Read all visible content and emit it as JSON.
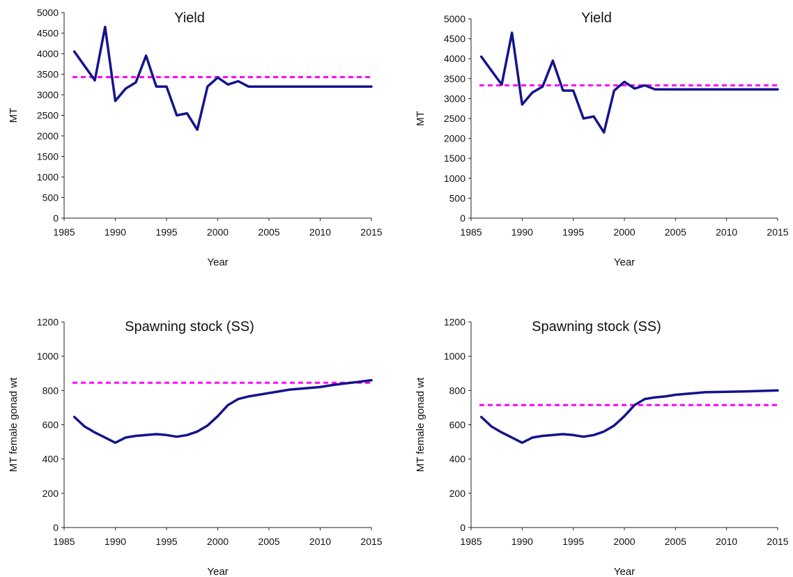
{
  "chart_data": [
    {
      "type": "line",
      "title": "Yield",
      "xlabel": "Year",
      "ylabel": "MT",
      "xlim": [
        1985,
        2015
      ],
      "ylim": [
        0,
        5000
      ],
      "xticks": [
        1985,
        1990,
        1995,
        2000,
        2005,
        2010,
        2015
      ],
      "yticks": [
        0,
        500,
        1000,
        1500,
        2000,
        2500,
        3000,
        3500,
        4000,
        4500,
        5000
      ],
      "xtick_labels": [
        "1985",
        "1990",
        "1995",
        "2000",
        "2005",
        "2010",
        "2015"
      ],
      "ytick_labels": [
        "0",
        "500",
        "1000",
        "1500",
        "2000",
        "2500",
        "3000",
        "3500",
        "4000",
        "4500",
        "5000"
      ],
      "grid": false,
      "series": [
        {
          "color": "#14148c",
          "style": "solid",
          "x": [
            1986,
            1987,
            1988,
            1989,
            1990,
            1991,
            1992,
            1993,
            1994,
            1995,
            1996,
            1997,
            1998,
            1999,
            2000,
            2001,
            2002,
            2003,
            2005,
            2010,
            2015
          ],
          "y": [
            4050,
            3700,
            3350,
            4650,
            2850,
            3150,
            3300,
            3950,
            3200,
            3200,
            2500,
            2550,
            2150,
            3200,
            3420,
            3250,
            3330,
            3200,
            3200,
            3200,
            3200
          ]
        }
      ],
      "reference_line": {
        "value": 3430,
        "color": "#ff00ff",
        "style": "dashed"
      }
    },
    {
      "type": "line",
      "title": "Yield",
      "xlabel": "Year",
      "ylabel": "MT",
      "xlim": [
        1985,
        2015
      ],
      "ylim": [
        0,
        5000
      ],
      "xticks": [
        1985,
        1990,
        1995,
        2000,
        2005,
        2010,
        2015
      ],
      "yticks": [
        0,
        500,
        1000,
        1500,
        2000,
        2500,
        3000,
        3500,
        4000,
        4500,
        5000
      ],
      "xtick_labels": [
        "1985",
        "1990",
        "1995",
        "2000",
        "2005",
        "2010",
        "2015"
      ],
      "ytick_labels": [
        "0",
        "500",
        "1000",
        "1500",
        "2000",
        "2500",
        "3000",
        "3500",
        "4000",
        "4500",
        "5000"
      ],
      "grid": false,
      "series": [
        {
          "color": "#14148c",
          "style": "solid",
          "x": [
            1986,
            1987,
            1988,
            1989,
            1990,
            1991,
            1992,
            1993,
            1994,
            1995,
            1996,
            1997,
            1998,
            1999,
            2000,
            2001,
            2002,
            2003,
            2005,
            2010,
            2015
          ],
          "y": [
            4050,
            3700,
            3350,
            4650,
            2850,
            3150,
            3300,
            3950,
            3200,
            3200,
            2500,
            2550,
            2150,
            3200,
            3420,
            3250,
            3330,
            3230,
            3230,
            3230,
            3230
          ]
        }
      ],
      "reference_line": {
        "value": 3330,
        "color": "#ff00ff",
        "style": "dashed"
      }
    },
    {
      "type": "line",
      "title": "Spawning stock (SS)",
      "xlabel": "Year",
      "ylabel": "MT female gonad wt",
      "xlim": [
        1985,
        2015
      ],
      "ylim": [
        0,
        1200
      ],
      "xticks": [
        1985,
        1990,
        1995,
        2000,
        2005,
        2010,
        2015
      ],
      "yticks": [
        0,
        200,
        400,
        600,
        800,
        1000,
        1200
      ],
      "xtick_labels": [
        "1985",
        "1990",
        "1995",
        "2000",
        "2005",
        "2010",
        "2015"
      ],
      "ytick_labels": [
        "0",
        "200",
        "400",
        "600",
        "800",
        "1000",
        "1200"
      ],
      "grid": false,
      "series": [
        {
          "color": "#14148c",
          "style": "solid",
          "x": [
            1986,
            1987,
            1988,
            1989,
            1990,
            1991,
            1992,
            1993,
            1994,
            1995,
            1996,
            1997,
            1998,
            1999,
            2000,
            2001,
            2002,
            2003,
            2004,
            2005,
            2006,
            2007,
            2008,
            2009,
            2010,
            2011,
            2012,
            2013,
            2014,
            2015
          ],
          "y": [
            645,
            590,
            555,
            525,
            495,
            525,
            535,
            540,
            545,
            540,
            530,
            540,
            560,
            595,
            650,
            715,
            750,
            765,
            775,
            785,
            795,
            805,
            810,
            815,
            820,
            830,
            838,
            845,
            852,
            860
          ]
        }
      ],
      "reference_line": {
        "value": 845,
        "color": "#ff00ff",
        "style": "dashed"
      }
    },
    {
      "type": "line",
      "title": "Spawning stock (SS)",
      "xlabel": "Year",
      "ylabel": "MT female gonad wt",
      "xlim": [
        1985,
        2015
      ],
      "ylim": [
        0,
        1200
      ],
      "xticks": [
        1985,
        1990,
        1995,
        2000,
        2005,
        2010,
        2015
      ],
      "yticks": [
        0,
        200,
        400,
        600,
        800,
        1000,
        1200
      ],
      "xtick_labels": [
        "1985",
        "1990",
        "1995",
        "2000",
        "2005",
        "2010",
        "2015"
      ],
      "ytick_labels": [
        "0",
        "200",
        "400",
        "600",
        "800",
        "1000",
        "1200"
      ],
      "grid": false,
      "series": [
        {
          "color": "#14148c",
          "style": "solid",
          "x": [
            1986,
            1987,
            1988,
            1989,
            1990,
            1991,
            1992,
            1993,
            1994,
            1995,
            1996,
            1997,
            1998,
            1999,
            2000,
            2001,
            2002,
            2003,
            2004,
            2005,
            2006,
            2007,
            2008,
            2010,
            2012,
            2015
          ],
          "y": [
            645,
            590,
            555,
            525,
            495,
            525,
            535,
            540,
            545,
            540,
            530,
            540,
            560,
            595,
            650,
            715,
            750,
            760,
            765,
            775,
            780,
            785,
            790,
            792,
            795,
            800
          ]
        }
      ],
      "reference_line": {
        "value": 715,
        "color": "#ff00ff",
        "style": "dashed"
      }
    }
  ]
}
